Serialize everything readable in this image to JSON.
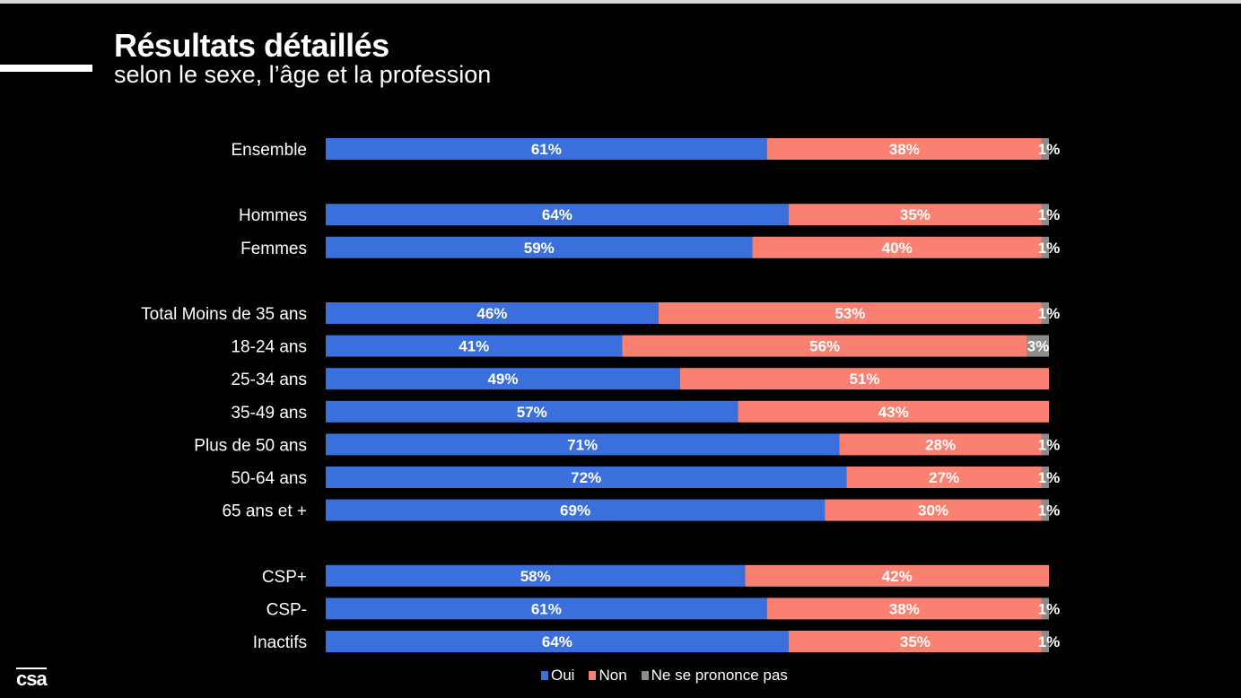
{
  "header": {
    "title": "Résultats détaillés",
    "subtitle": "selon le sexe, l’âge et la profession"
  },
  "logo": "csa",
  "chart_data": {
    "type": "bar",
    "orientation": "horizontal",
    "stacked": true,
    "title": "Résultats détaillés",
    "subtitle": "selon le sexe, l’âge et la profession",
    "groups": [
      [
        "Ensemble"
      ],
      [
        "Hommes",
        "Femmes"
      ],
      [
        "Total Moins de 35 ans",
        "18-24 ans",
        "25-34 ans",
        "35-49 ans",
        "Plus de 50 ans",
        "50-64 ans",
        "65 ans et +"
      ],
      [
        "CSP+",
        "CSP-",
        "Inactifs"
      ]
    ],
    "categories": [
      "Ensemble",
      "Hommes",
      "Femmes",
      "Total Moins de 35 ans",
      "18-24 ans",
      "25-34 ans",
      "35-49 ans",
      "Plus de 50 ans",
      "50-64 ans",
      "65 ans et +",
      "CSP+",
      "CSP-",
      "Inactifs"
    ],
    "series": [
      {
        "name": "Oui",
        "color": "#3a6fdc",
        "values": [
          61,
          64,
          59,
          46,
          41,
          49,
          57,
          71,
          72,
          69,
          58,
          61,
          64
        ]
      },
      {
        "name": "Non",
        "color": "#fa8072",
        "values": [
          38,
          35,
          40,
          53,
          56,
          51,
          43,
          28,
          27,
          30,
          42,
          38,
          35
        ]
      },
      {
        "name": "Ne se prononce pas",
        "color": "#8c8c8c",
        "values": [
          1,
          1,
          1,
          1,
          3,
          0,
          0,
          1,
          1,
          1,
          0,
          1,
          1
        ]
      }
    ],
    "xlim": [
      0,
      100
    ],
    "value_suffix": "%",
    "legend_position": "bottom"
  }
}
